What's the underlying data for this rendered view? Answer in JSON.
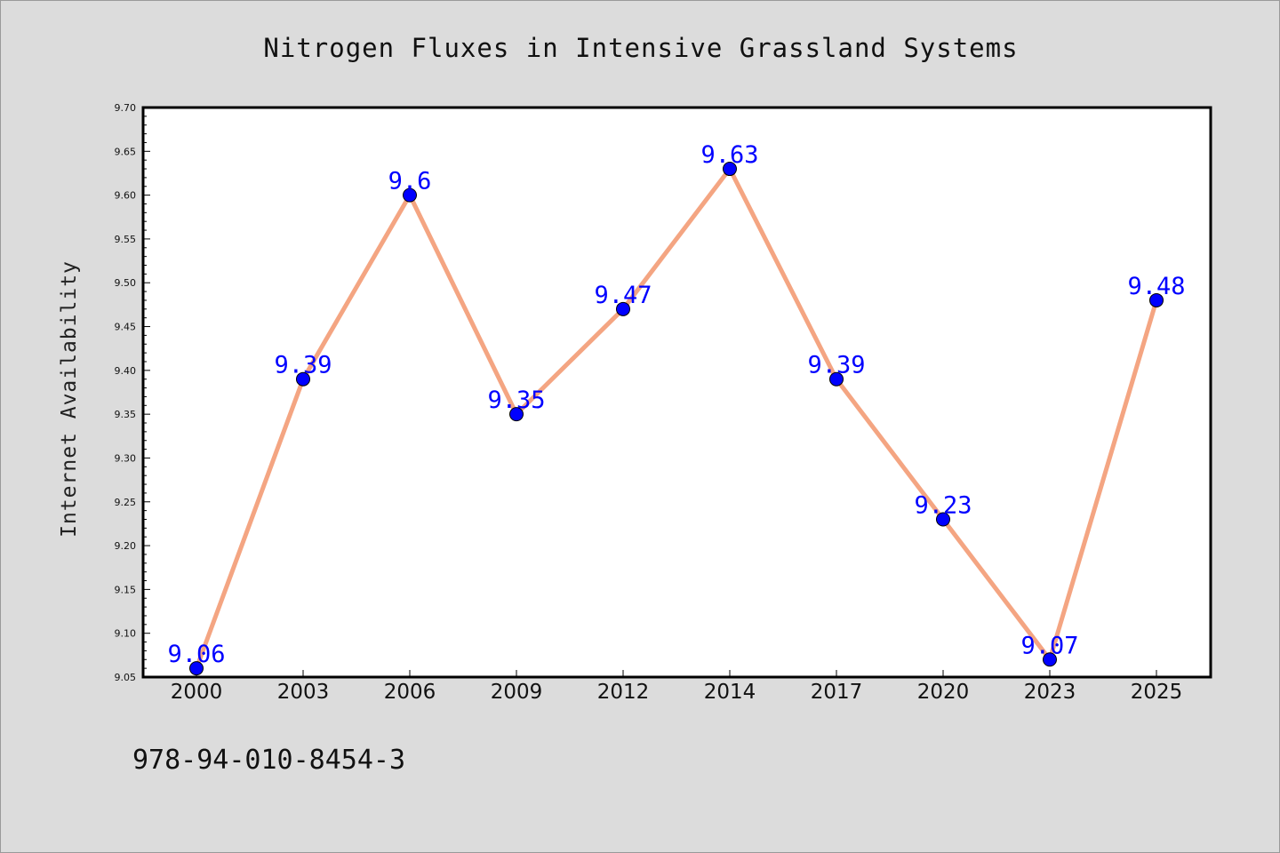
{
  "chart_data": {
    "type": "line",
    "title": "Nitrogen Fluxes in Intensive Grassland Systems",
    "xlabel": "",
    "ylabel": "Internet Availability",
    "categories": [
      "2000",
      "2003",
      "2006",
      "2009",
      "2012",
      "2014",
      "2017",
      "2020",
      "2023",
      "2025"
    ],
    "series": [
      {
        "values": [
          9.06,
          9.39,
          9.6,
          9.35,
          9.47,
          9.63,
          9.39,
          9.23,
          9.07,
          9.48
        ],
        "labels": [
          "9.06",
          "9.39",
          "9.6",
          "9.35",
          "9.47",
          "9.63",
          "9.39",
          "9.23",
          "9.07",
          "9.48"
        ],
        "line_color": "#f4a582",
        "marker_color": "#0000ff",
        "label_color": "#0000ff"
      }
    ],
    "ylim": [
      9.05,
      9.7
    ],
    "y_ticks": [
      "9.05",
      "9.10",
      "9.15",
      "9.20",
      "9.25",
      "9.30",
      "9.35",
      "9.40",
      "9.45",
      "9.50",
      "9.55",
      "9.60",
      "9.65",
      "9.70"
    ],
    "grid": false,
    "legend": "none",
    "background_color": "#dcdcdc",
    "plot_background_color": "#ffffff"
  },
  "footer": {
    "text": "978-94-010-8454-3"
  }
}
